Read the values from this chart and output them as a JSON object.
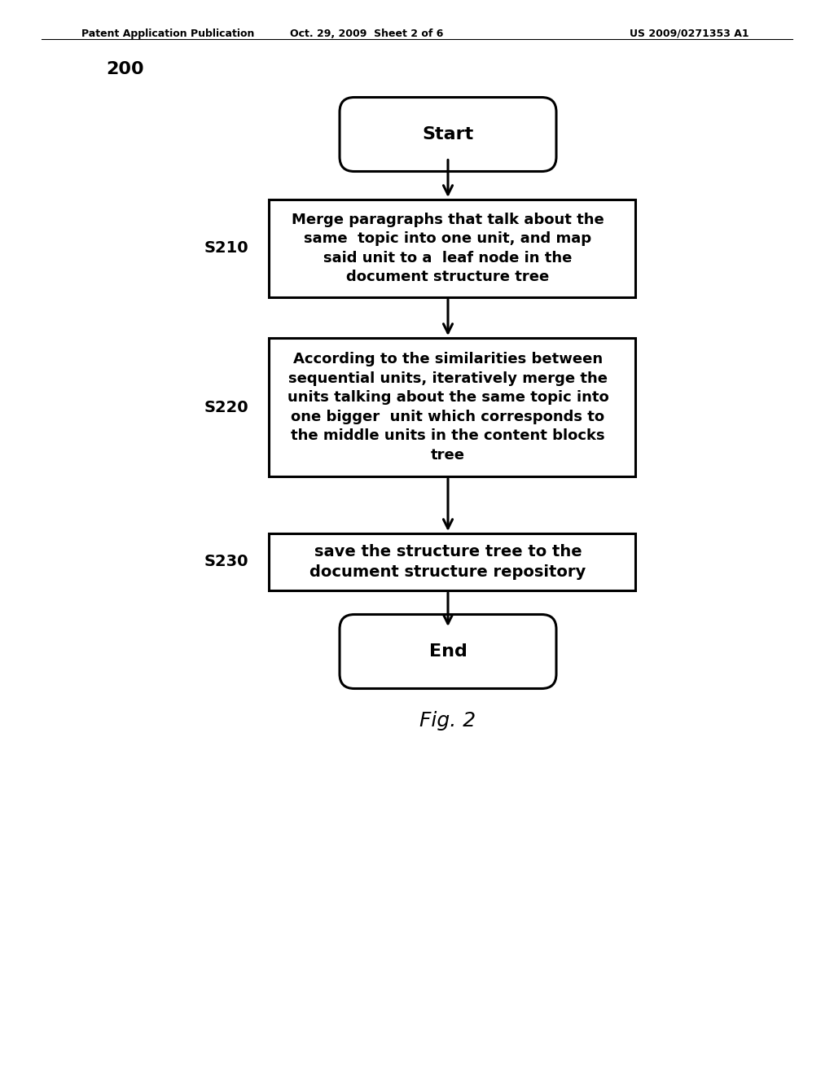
{
  "title_left": "Patent Application Publication",
  "title_mid": "Oct. 29, 2009  Sheet 2 of 6",
  "title_right": "US 2009/0271353 A1",
  "diagram_label": "200",
  "fig_label": "Fig. 2",
  "start_text": "Start",
  "end_text": "End",
  "steps": [
    {
      "label": "S210",
      "text": "Merge paragraphs that talk about the\nsame  topic into one unit, and map\nsaid unit to a  leaf node in the\ndocument structure tree",
      "bold": true
    },
    {
      "label": "S220",
      "text": "According to the similarities between\nsequential units, iteratively merge the\nunits talking about the same topic into\none bigger  unit which corresponds to\nthe middle units in the content blocks\ntree",
      "bold": false
    },
    {
      "label": "S230",
      "text": "save the structure tree to the\ndocument structure repository",
      "bold": false
    }
  ],
  "bg_color": "#ffffff",
  "box_color": "#000000",
  "text_color": "#000000",
  "arrow_color": "#000000"
}
